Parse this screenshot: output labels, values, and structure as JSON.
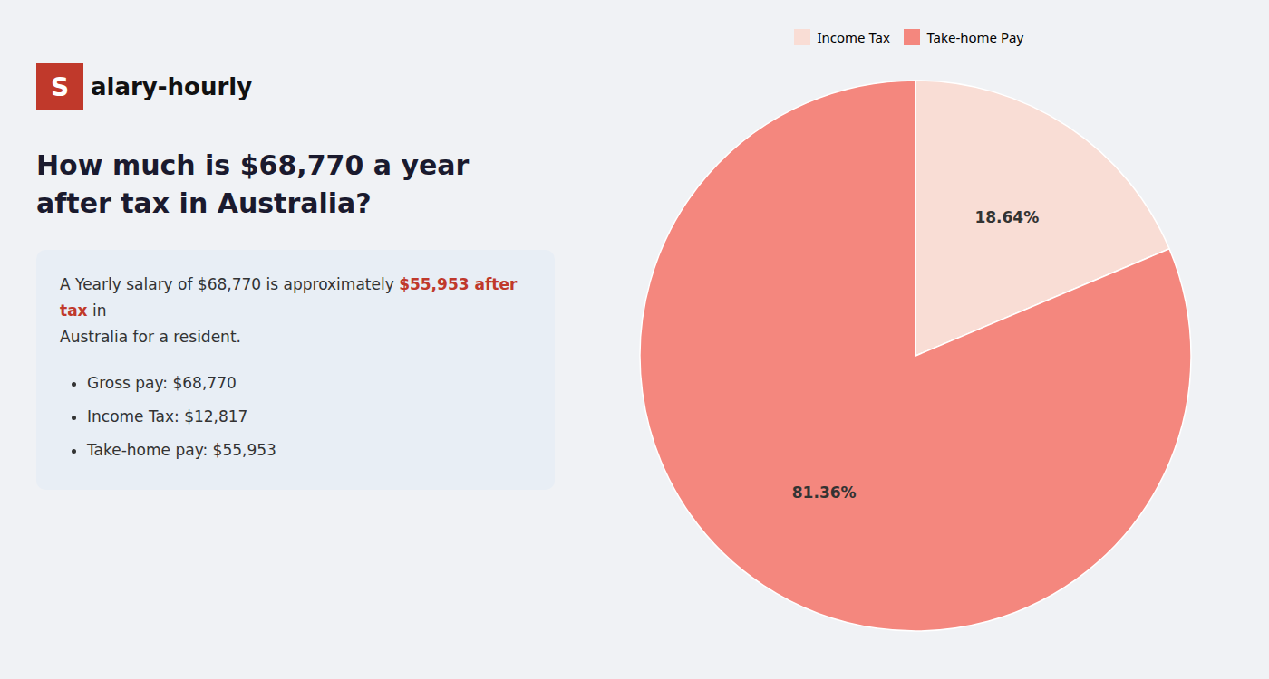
{
  "chart_data": {
    "type": "pie",
    "title": "How much is $68,770 a year after tax in Australia?",
    "annotations": [
      {
        "text": "S",
        "color": "#c0392b"
      },
      {
        "text": "alary-hourly"
      },
      {
        "text": "A Yearly salary of $68,770 is approximately"
      },
      {
        "text": "$55,953 after tax",
        "color": "#c0392b"
      },
      {
        "text": "in"
      },
      {
        "text": "Australia for a resident."
      },
      {
        "text": "Gross pay: $68,770"
      },
      {
        "text": "Income Tax: $12,817"
      },
      {
        "text": "Take-home pay: $55,953"
      }
    ],
    "categories": [
      "Income Tax",
      "Take-home Pay"
    ],
    "values": [
      18.64,
      81.36
    ],
    "value_labels": [
      "18.64%",
      "81.36%"
    ],
    "colors": [
      "#f9ddd5",
      "#f4877e"
    ],
    "data_labels": true,
    "legend": "top"
  }
}
